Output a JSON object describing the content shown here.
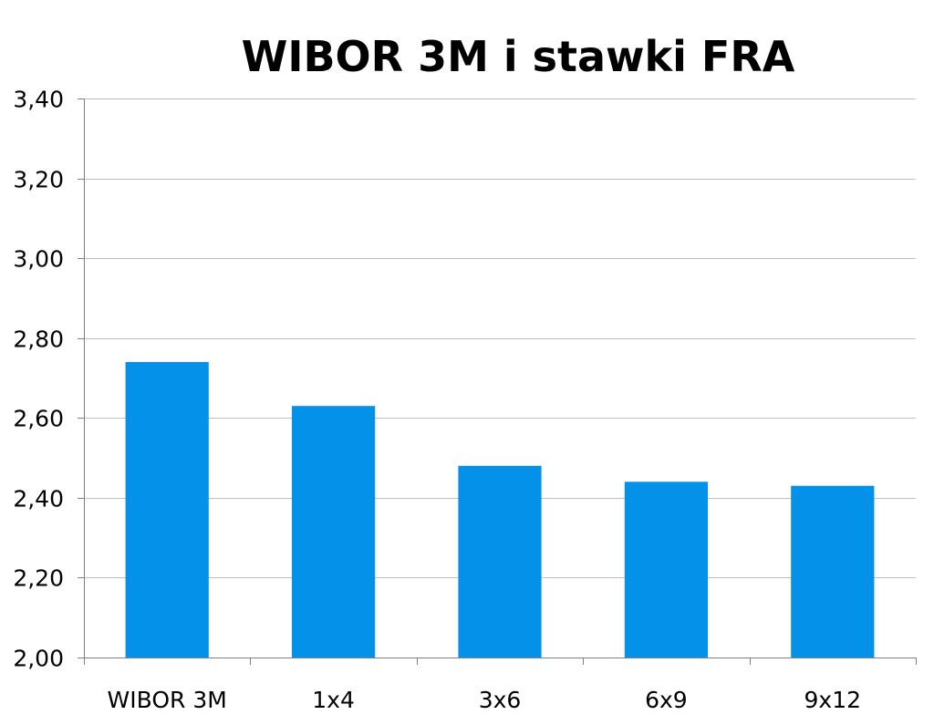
{
  "chart_data": {
    "type": "bar",
    "title": "WIBOR 3M i stawki FRA",
    "xlabel": "",
    "ylabel": "",
    "categories": [
      "WIBOR 3M",
      "1x4",
      "3x6",
      "6x9",
      "9x12"
    ],
    "values": [
      2.74,
      2.63,
      2.48,
      2.44,
      2.43
    ],
    "ylim": [
      2.0,
      3.4
    ],
    "yticks": [
      2.0,
      2.2,
      2.4,
      2.6,
      2.8,
      3.0,
      3.2,
      3.4
    ],
    "ytick_labels": [
      "2,00",
      "2,20",
      "2,40",
      "2,60",
      "2,80",
      "3,00",
      "3,20",
      "3,40"
    ],
    "grid": true,
    "legend": "none",
    "colors": {
      "bar": "#0391EA",
      "grid": "#BFBFBF",
      "axis": "#808080",
      "text": "#000000"
    }
  }
}
